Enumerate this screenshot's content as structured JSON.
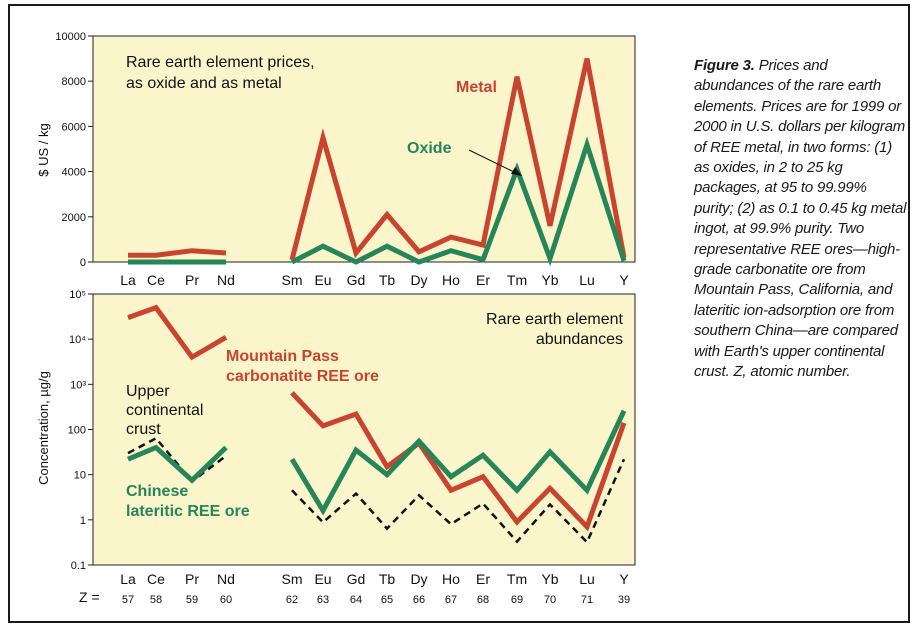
{
  "caption": {
    "figure_label": "Figure 3.",
    "text": "Prices and abundances of the rare earth elements. Prices are for 1999 or 2000 in U.S. dollars per kilogram of REE metal, in two forms: (1) as oxides, in 2 to 25 kg packages, at 95 to 99.99% purity; (2) as 0.1 to 0.45 kg metal ingot, at 99.9% purity. Two representative REE ores—high-grade carbonatite ore from Mountain Pass, California, and lateritic ion-adsorption ore from southern China—are compared with Earth's upper continental crust. Z, atomic number."
  },
  "colors": {
    "panel_bg": "#fbf5cc",
    "metal": "#c9442f",
    "oxide": "#26865a",
    "crust": "#111111"
  },
  "chart_data": [
    {
      "type": "line",
      "title": "Rare earth element prices, as oxide and as metal",
      "title_lines": [
        "Rare earth element prices,",
        "as oxide and as metal"
      ],
      "ylabel": "$ US / kg",
      "xlabel": "",
      "ylim": [
        0,
        10000
      ],
      "yticks": [
        "0",
        "2000",
        "4000",
        "6000",
        "8000",
        "10000"
      ],
      "categories": [
        "La",
        "Ce",
        "Pr",
        "Nd",
        "Sm",
        "Eu",
        "Gd",
        "Tb",
        "Dy",
        "Ho",
        "Er",
        "Tm",
        "Yb",
        "Lu",
        "Y"
      ],
      "grid": false,
      "series": [
        {
          "name": "Metal",
          "values": [
            300,
            300,
            500,
            400,
            100,
            5500,
            400,
            2100,
            450,
            1100,
            750,
            8200,
            1600,
            9000,
            200
          ]
        },
        {
          "name": "Oxide",
          "values": [
            0,
            0,
            0,
            0,
            0,
            700,
            0,
            700,
            0,
            500,
            100,
            4100,
            150,
            5200,
            50
          ]
        }
      ],
      "segments": [
        [
          0,
          3
        ],
        [
          4,
          14
        ]
      ]
    },
    {
      "type": "line",
      "title": "Rare earth element abundances",
      "title_lines": [
        "Rare earth element",
        "abundances"
      ],
      "ylabel": "Concentration, µg/g",
      "xlabel": "Z =",
      "y_scale": "log",
      "ylim": [
        0.1,
        100000
      ],
      "yticks": [
        "0.1",
        "1",
        "10",
        "100",
        "10³",
        "10⁴",
        "10⁵"
      ],
      "categories": [
        "La",
        "Ce",
        "Pr",
        "Nd",
        "Sm",
        "Eu",
        "Gd",
        "Tb",
        "Dy",
        "Ho",
        "Er",
        "Tm",
        "Yb",
        "Lu",
        "Y"
      ],
      "z_values": [
        "57",
        "58",
        "59",
        "60",
        "62",
        "63",
        "64",
        "65",
        "66",
        "67",
        "68",
        "69",
        "70",
        "71",
        "39"
      ],
      "grid": false,
      "segments": [
        [
          0,
          3
        ],
        [
          4,
          14
        ]
      ],
      "series": [
        {
          "name": "Mountain Pass carbonatite REE ore",
          "label_lines": [
            "Mountain Pass",
            "carbonatite REE ore"
          ],
          "values": [
            30000,
            50000,
            4000,
            11000,
            650,
            120,
            220,
            15,
            50,
            4.5,
            9,
            0.9,
            5,
            0.7,
            140
          ]
        },
        {
          "name": "Upper continental crust",
          "label_lines": [
            "Upper",
            "continental",
            "crust"
          ],
          "values": [
            30,
            64,
            7.1,
            26,
            4.5,
            0.88,
            3.8,
            0.64,
            3.5,
            0.8,
            2.3,
            0.33,
            2.2,
            0.32,
            22
          ]
        },
        {
          "name": "Chinese lateritic REE ore",
          "label_lines": [
            "Chinese",
            "lateritic REE ore"
          ],
          "values": [
            22,
            40,
            7.5,
            40,
            22,
            1.6,
            35,
            10,
            55,
            9,
            27,
            4.5,
            32,
            4.5,
            260
          ]
        }
      ]
    }
  ]
}
